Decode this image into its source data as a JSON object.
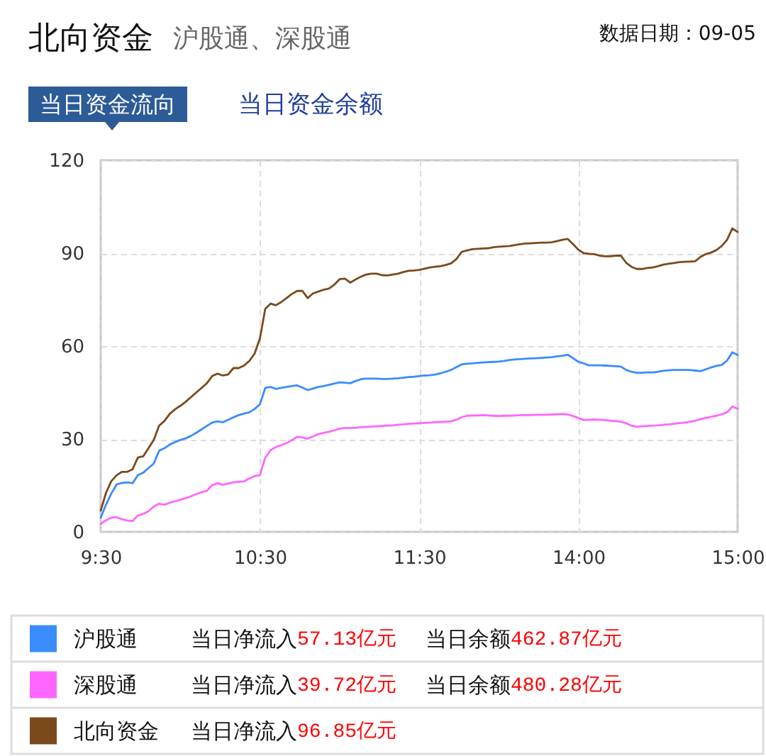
{
  "chart_data": {
    "type": "line",
    "title": "北向资金",
    "subtitle": "沪股通、深股通",
    "annotations": [
      "数据日期：09-05",
      "当日资金流向",
      "当日资金余额",
      "当日净流入57.13亿元",
      "当日余额462.87亿元",
      "当日净流入39.72亿元",
      "当日余额480.28亿元",
      "当日净流入96.85亿元"
    ],
    "categories": [
      "9:30",
      null,
      null,
      null,
      null,
      null,
      null,
      null,
      null,
      null,
      null,
      null,
      null,
      null,
      null,
      null,
      null,
      null,
      null,
      null,
      null,
      null,
      null,
      null,
      null,
      null,
      null,
      null,
      null,
      null,
      "10:30",
      null,
      null,
      null,
      null,
      null,
      null,
      null,
      null,
      null,
      null,
      null,
      null,
      null,
      null,
      null,
      null,
      null,
      null,
      null,
      null,
      null,
      null,
      null,
      null,
      null,
      null,
      null,
      null,
      null,
      "11:30",
      null,
      null,
      null,
      null,
      null,
      null,
      null,
      null,
      null,
      null,
      null,
      null,
      null,
      null,
      null,
      null,
      null,
      null,
      null,
      null,
      null,
      null,
      null,
      null,
      null,
      null,
      null,
      null,
      null,
      "14:00",
      null,
      null,
      null,
      null,
      null,
      null,
      null,
      null,
      null,
      null,
      null,
      null,
      null,
      null,
      null,
      null,
      null,
      null,
      null,
      null,
      null,
      null,
      null,
      null,
      null,
      null,
      null,
      null,
      null,
      "15:00"
    ],
    "ylim": [
      0,
      120
    ],
    "yticks": [
      0,
      30,
      60,
      90,
      120
    ],
    "grid": true,
    "legend": "bottom",
    "series": [
      {
        "name": "沪股通",
        "color": "#3b8cff",
        "values": [
          4.6,
          8.8,
          12.4,
          15.3,
          15.8,
          16,
          15.7,
          18.3,
          19.1,
          20.6,
          22.1,
          26.2,
          27,
          28.2,
          29,
          29.7,
          30.2,
          31,
          32,
          33.1,
          34.2,
          35.3,
          35.7,
          35.4,
          36.2,
          37,
          37.7,
          38.2,
          38.6,
          39.7,
          41.2,
          46.5,
          46.8,
          46.2,
          46.5,
          46.8,
          47.1,
          47.3,
          46.6,
          45.8,
          46.3,
          46.8,
          47.1,
          47.5,
          47.9,
          48.3,
          48.2,
          48,
          48.7,
          49.3,
          49.5,
          49.5,
          49.5,
          49.4,
          49.4,
          49.5,
          49.6,
          49.8,
          50,
          50.1,
          50.3,
          50.5,
          50.6,
          50.8,
          51.2,
          51.7,
          52.3,
          53.2,
          54.1,
          54.3,
          54.4,
          54.6,
          54.7,
          54.8,
          54.9,
          55,
          55.2,
          55.5,
          55.7,
          55.8,
          55.9,
          56,
          56.1,
          56.2,
          56.3,
          56.4,
          56.7,
          56.9,
          57.2,
          56.1,
          54.9,
          54.4,
          53.8,
          53.8,
          53.8,
          53.7,
          53.6,
          53.5,
          53.4,
          52.3,
          51.7,
          51.4,
          51.4,
          51.5,
          51.5,
          51.7,
          52,
          52.2,
          52.3,
          52.3,
          52.3,
          52.3,
          52.1,
          51.9,
          52.5,
          53.1,
          53.6,
          53.9,
          55.3,
          58,
          57.13
        ]
      },
      {
        "name": "深股通",
        "color": "#ff66ff",
        "values": [
          2.6,
          3.8,
          4.6,
          4.7,
          4.1,
          3.7,
          3.5,
          5.3,
          5.8,
          6.7,
          8.2,
          9.1,
          8.8,
          9.4,
          9.9,
          10.4,
          10.9,
          11.5,
          12.2,
          12.8,
          13.3,
          15.1,
          15.7,
          15.2,
          15.6,
          16,
          16.2,
          16.3,
          17.3,
          18,
          18.3,
          24,
          26.4,
          27.4,
          28,
          28.7,
          29.6,
          30.7,
          30.5,
          30.1,
          30.8,
          31.6,
          32,
          32.3,
          32.8,
          33.3,
          33.6,
          33.6,
          33.6,
          33.8,
          33.9,
          34,
          34.1,
          34.2,
          34.3,
          34.4,
          34.6,
          34.7,
          34.9,
          35,
          35.1,
          35.2,
          35.3,
          35.4,
          35.5,
          35.6,
          35.7,
          36.2,
          37,
          37.5,
          37.6,
          37.6,
          37.7,
          37.6,
          37.5,
          37.4,
          37.5,
          37.5,
          37.6,
          37.7,
          37.7,
          37.7,
          37.8,
          37.8,
          37.8,
          37.9,
          38,
          38.1,
          37.9,
          37.4,
          36.8,
          36.1,
          36.2,
          36.3,
          36.2,
          36.1,
          35.9,
          35.8,
          35.5,
          35.1,
          34.3,
          34,
          34.1,
          34.2,
          34.3,
          34.4,
          34.6,
          34.7,
          34.9,
          35.1,
          35.3,
          35.5,
          35.9,
          36.4,
          36.8,
          37.2,
          37.5,
          38,
          38.6,
          40.5,
          39.72
        ]
      },
      {
        "name": "北向资金",
        "color": "#7b4a1c",
        "values": [
          6.9,
          12.6,
          16.4,
          18.3,
          19.4,
          19.4,
          20.2,
          24,
          24.4,
          27,
          29.7,
          34.3,
          35.8,
          38.1,
          39.6,
          40.7,
          42,
          43.5,
          45,
          46.5,
          48,
          50.3,
          51.1,
          50.5,
          50.8,
          52.9,
          52.9,
          53.7,
          55.2,
          57.6,
          62.5,
          72,
          73.7,
          73.2,
          74.2,
          75.5,
          76.8,
          77.8,
          77.8,
          75.5,
          77,
          77.6,
          78.2,
          78.6,
          79.8,
          81.6,
          81.8,
          80.5,
          81.5,
          82.4,
          83.1,
          83.4,
          83.4,
          82.9,
          82.8,
          83.1,
          83.4,
          83.9,
          84.3,
          84.4,
          84.6,
          85,
          85.4,
          85.6,
          85.8,
          86.2,
          86.7,
          88.1,
          90.4,
          90.9,
          91.3,
          91.4,
          91.5,
          91.6,
          91.9,
          92.1,
          92.2,
          92.3,
          92.6,
          92.9,
          93.1,
          93.2,
          93.3,
          93.4,
          93.4,
          93.5,
          93.9,
          94.3,
          94.6,
          92.9,
          91.1,
          90,
          89.8,
          89.7,
          89.2,
          89,
          89,
          89.2,
          89.2,
          86.9,
          85.6,
          84.9,
          84.9,
          85.2,
          85.4,
          85.8,
          86.3,
          86.6,
          86.8,
          87.1,
          87.2,
          87.3,
          87.4,
          88.8,
          89.7,
          90.2,
          91,
          92.3,
          94.3,
          98,
          96.85
        ]
      }
    ]
  }
}
